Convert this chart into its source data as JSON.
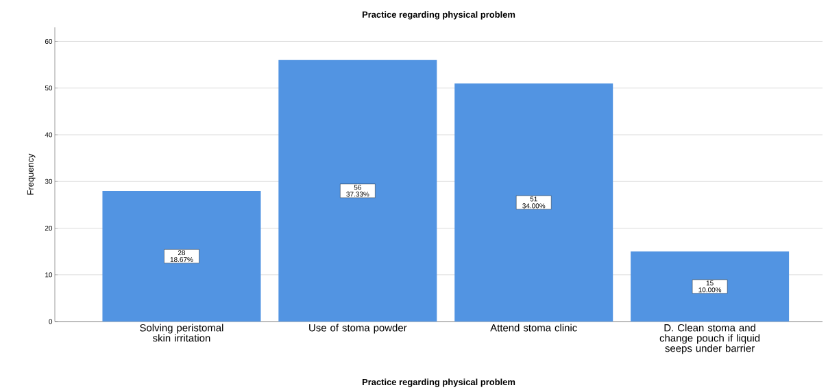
{
  "chart_data": {
    "type": "bar",
    "title": "Practice regarding physical problem",
    "xlabel": "Practice regarding physical problem",
    "ylabel": "Frequency",
    "categories": [
      "Solving peristomal skin irritation",
      "Use of stoma powder",
      "Attend stoma clinic",
      "D. Clean stoma and change pouch if liquid seeps under barrier"
    ],
    "values": [
      28,
      56,
      51,
      15
    ],
    "value_labels": [
      "28 18.67%",
      "56 37.33%",
      "51 34.00%",
      "15 10.00%"
    ],
    "color": "#5294e2",
    "ylim": [
      0,
      63
    ],
    "yticks": [
      0,
      10,
      20,
      30,
      40,
      50,
      60
    ],
    "grid": "y"
  }
}
